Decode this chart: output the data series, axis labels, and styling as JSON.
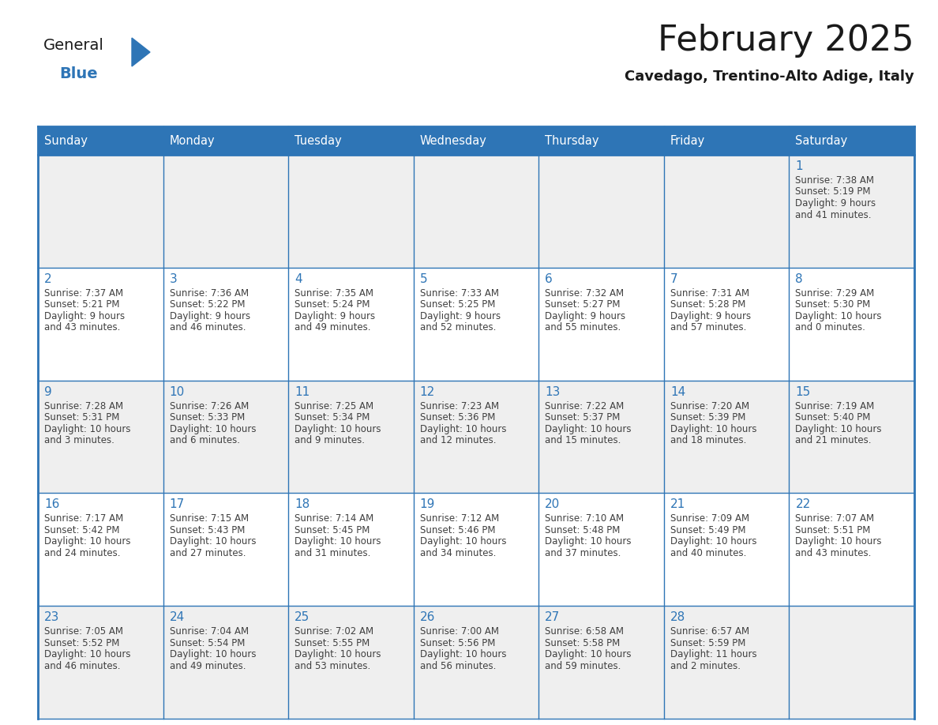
{
  "title": "February 2025",
  "subtitle": "Cavedago, Trentino-Alto Adige, Italy",
  "days_of_week": [
    "Sunday",
    "Monday",
    "Tuesday",
    "Wednesday",
    "Thursday",
    "Friday",
    "Saturday"
  ],
  "header_bg": "#2E75B6",
  "header_text": "#FFFFFF",
  "row_bg_odd": "#EFEFEF",
  "row_bg_even": "#FFFFFF",
  "border_color": "#2E75B6",
  "day_number_color": "#2E75B6",
  "text_color": "#404040",
  "title_color": "#1a1a1a",
  "subtitle_color": "#1a1a1a",
  "logo_general_color": "#1a1a1a",
  "logo_blue_color": "#2E75B6",
  "weeks": [
    [
      {
        "day": null,
        "sunrise": null,
        "sunset": null,
        "daylight": null
      },
      {
        "day": null,
        "sunrise": null,
        "sunset": null,
        "daylight": null
      },
      {
        "day": null,
        "sunrise": null,
        "sunset": null,
        "daylight": null
      },
      {
        "day": null,
        "sunrise": null,
        "sunset": null,
        "daylight": null
      },
      {
        "day": null,
        "sunrise": null,
        "sunset": null,
        "daylight": null
      },
      {
        "day": null,
        "sunrise": null,
        "sunset": null,
        "daylight": null
      },
      {
        "day": 1,
        "sunrise": "7:38 AM",
        "sunset": "5:19 PM",
        "daylight": "9 hours and 41 minutes."
      }
    ],
    [
      {
        "day": 2,
        "sunrise": "7:37 AM",
        "sunset": "5:21 PM",
        "daylight": "9 hours and 43 minutes."
      },
      {
        "day": 3,
        "sunrise": "7:36 AM",
        "sunset": "5:22 PM",
        "daylight": "9 hours and 46 minutes."
      },
      {
        "day": 4,
        "sunrise": "7:35 AM",
        "sunset": "5:24 PM",
        "daylight": "9 hours and 49 minutes."
      },
      {
        "day": 5,
        "sunrise": "7:33 AM",
        "sunset": "5:25 PM",
        "daylight": "9 hours and 52 minutes."
      },
      {
        "day": 6,
        "sunrise": "7:32 AM",
        "sunset": "5:27 PM",
        "daylight": "9 hours and 55 minutes."
      },
      {
        "day": 7,
        "sunrise": "7:31 AM",
        "sunset": "5:28 PM",
        "daylight": "9 hours and 57 minutes."
      },
      {
        "day": 8,
        "sunrise": "7:29 AM",
        "sunset": "5:30 PM",
        "daylight": "10 hours and 0 minutes."
      }
    ],
    [
      {
        "day": 9,
        "sunrise": "7:28 AM",
        "sunset": "5:31 PM",
        "daylight": "10 hours and 3 minutes."
      },
      {
        "day": 10,
        "sunrise": "7:26 AM",
        "sunset": "5:33 PM",
        "daylight": "10 hours and 6 minutes."
      },
      {
        "day": 11,
        "sunrise": "7:25 AM",
        "sunset": "5:34 PM",
        "daylight": "10 hours and 9 minutes."
      },
      {
        "day": 12,
        "sunrise": "7:23 AM",
        "sunset": "5:36 PM",
        "daylight": "10 hours and 12 minutes."
      },
      {
        "day": 13,
        "sunrise": "7:22 AM",
        "sunset": "5:37 PM",
        "daylight": "10 hours and 15 minutes."
      },
      {
        "day": 14,
        "sunrise": "7:20 AM",
        "sunset": "5:39 PM",
        "daylight": "10 hours and 18 minutes."
      },
      {
        "day": 15,
        "sunrise": "7:19 AM",
        "sunset": "5:40 PM",
        "daylight": "10 hours and 21 minutes."
      }
    ],
    [
      {
        "day": 16,
        "sunrise": "7:17 AM",
        "sunset": "5:42 PM",
        "daylight": "10 hours and 24 minutes."
      },
      {
        "day": 17,
        "sunrise": "7:15 AM",
        "sunset": "5:43 PM",
        "daylight": "10 hours and 27 minutes."
      },
      {
        "day": 18,
        "sunrise": "7:14 AM",
        "sunset": "5:45 PM",
        "daylight": "10 hours and 31 minutes."
      },
      {
        "day": 19,
        "sunrise": "7:12 AM",
        "sunset": "5:46 PM",
        "daylight": "10 hours and 34 minutes."
      },
      {
        "day": 20,
        "sunrise": "7:10 AM",
        "sunset": "5:48 PM",
        "daylight": "10 hours and 37 minutes."
      },
      {
        "day": 21,
        "sunrise": "7:09 AM",
        "sunset": "5:49 PM",
        "daylight": "10 hours and 40 minutes."
      },
      {
        "day": 22,
        "sunrise": "7:07 AM",
        "sunset": "5:51 PM",
        "daylight": "10 hours and 43 minutes."
      }
    ],
    [
      {
        "day": 23,
        "sunrise": "7:05 AM",
        "sunset": "5:52 PM",
        "daylight": "10 hours and 46 minutes."
      },
      {
        "day": 24,
        "sunrise": "7:04 AM",
        "sunset": "5:54 PM",
        "daylight": "10 hours and 49 minutes."
      },
      {
        "day": 25,
        "sunrise": "7:02 AM",
        "sunset": "5:55 PM",
        "daylight": "10 hours and 53 minutes."
      },
      {
        "day": 26,
        "sunrise": "7:00 AM",
        "sunset": "5:56 PM",
        "daylight": "10 hours and 56 minutes."
      },
      {
        "day": 27,
        "sunrise": "6:58 AM",
        "sunset": "5:58 PM",
        "daylight": "10 hours and 59 minutes."
      },
      {
        "day": 28,
        "sunrise": "6:57 AM",
        "sunset": "5:59 PM",
        "daylight": "11 hours and 2 minutes."
      },
      {
        "day": null,
        "sunrise": null,
        "sunset": null,
        "daylight": null
      }
    ]
  ]
}
